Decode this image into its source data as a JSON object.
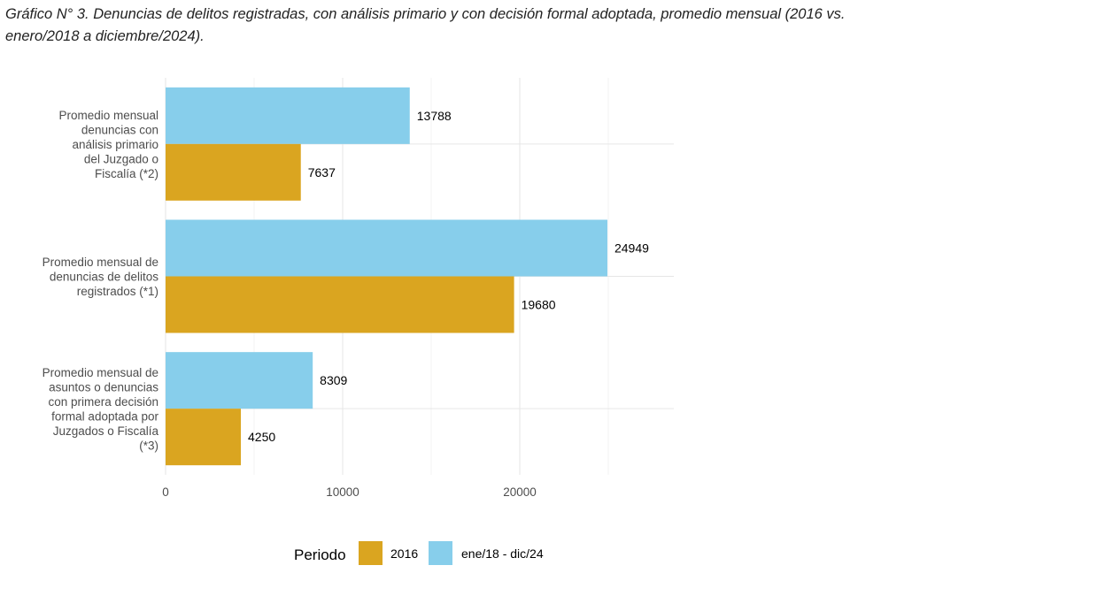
{
  "chart_data": {
    "type": "bar",
    "orientation": "horizontal",
    "title": "Gráfico N° 3. Denuncias de delitos registradas, con análisis primario y con decisión formal adoptada, promedio mensual (2016 vs. enero/2018 a diciembre/2024).",
    "xlabel": "",
    "ylabel": "",
    "xlim": [
      0,
      28700
    ],
    "x_ticks": [
      0,
      10000,
      20000
    ],
    "x_tick_labels": [
      "0",
      "10000",
      "20000"
    ],
    "grid": true,
    "legend_position": "bottom",
    "legend_title": "Periodo",
    "categories": [
      "Promedio mensual denuncias con análisis primario del Juzgado o Fiscalía (*2)",
      "Promedio mensual de denuncias de delitos registrados (*1)",
      "Promedio mensual de asuntos o denuncias con primera decisión formal adoptada por Juzgados o Fiscalía (*3)"
    ],
    "category_lines": [
      [
        "Promedio mensual",
        "denuncias con",
        "análisis primario",
        "del Juzgado o",
        "Fiscalía (*2)"
      ],
      [
        "Promedio mensual de",
        "denuncias de delitos",
        "registrados (*1)"
      ],
      [
        "Promedio mensual de",
        "asuntos o denuncias",
        "con primera decisión",
        "formal adoptada por",
        "Juzgados o Fiscalía",
        "(*3)"
      ]
    ],
    "series": [
      {
        "name": "ene/18 - dic/24",
        "color": "#87CEEB",
        "values": [
          13788,
          24949,
          8309
        ]
      },
      {
        "name": "2016",
        "color": "#DAA520",
        "values": [
          7637,
          19680,
          4250
        ]
      }
    ],
    "legend_order": [
      "2016",
      "ene/18 - dic/24"
    ]
  }
}
